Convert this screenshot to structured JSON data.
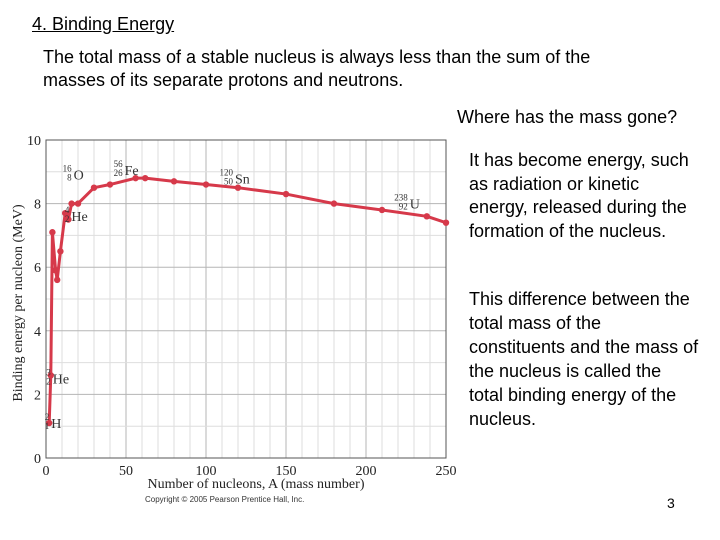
{
  "slide": {
    "title": "4. Binding Energy",
    "intro": "The total mass of a stable nucleus is always less than the sum of the masses of its separate protons and neutrons.",
    "question": "Where has the mass gone?",
    "para1": "It has become energy, such as radiation or kinetic energy, released during the formation of the nucleus.",
    "para2": "This difference between the total mass of the constituents and the mass of the nucleus is called the total binding energy of the nucleus.",
    "page_number": "3"
  },
  "chart_data": {
    "type": "line",
    "xlabel": "Number of nucleons, A (mass number)",
    "ylabel": "Binding energy per nucleon (MeV)",
    "xlim": [
      0,
      250
    ],
    "ylim": [
      0,
      10
    ],
    "xticks": [
      "0",
      "50",
      "100",
      "150",
      "200",
      "250"
    ],
    "yticks": [
      "0",
      "2",
      "4",
      "6",
      "8",
      "10"
    ],
    "grid": true,
    "line_color": "#d6394a",
    "series": [
      {
        "x": [
          2,
          3,
          4,
          6,
          7,
          9,
          12,
          14,
          16,
          20,
          30,
          40,
          56,
          62,
          80,
          100,
          120,
          150,
          180,
          210,
          238,
          250
        ],
        "y": [
          1.1,
          2.6,
          7.1,
          5.9,
          5.6,
          6.5,
          7.7,
          7.5,
          8.0,
          8.0,
          8.5,
          8.6,
          8.8,
          8.8,
          8.7,
          8.6,
          8.5,
          8.3,
          8.0,
          7.8,
          7.6,
          7.4
        ]
      }
    ],
    "annotations": [
      {
        "sup": "16",
        "sub": "8",
        "symbol": "O",
        "x": 16,
        "y": 8.0
      },
      {
        "sup": "56",
        "sub": "26",
        "symbol": "Fe",
        "x": 56,
        "y": 8.8
      },
      {
        "sup": "120",
        "sub": "50",
        "symbol": "Sn",
        "x": 120,
        "y": 8.5
      },
      {
        "sup": "238",
        "sub": "92",
        "symbol": "U",
        "x": 238,
        "y": 7.6
      },
      {
        "sup": "4",
        "sub": "2",
        "symbol": "He",
        "x": 4,
        "y": 7.1
      },
      {
        "sup": "3",
        "sub": "2",
        "symbol": "He",
        "x": 3,
        "y": 2.6
      },
      {
        "sup": "2",
        "sub": "1",
        "symbol": "H",
        "x": 2,
        "y": 1.1
      }
    ],
    "copyright": "Copyright © 2005 Pearson Prentice Hall, Inc."
  }
}
